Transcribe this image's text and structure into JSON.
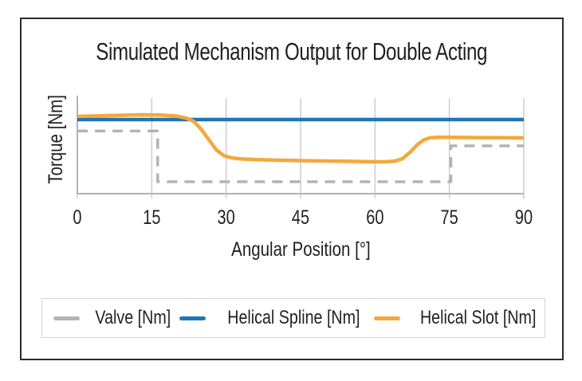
{
  "title": "Simulated Mechanism Output for Double Acting",
  "chart_data": {
    "type": "line",
    "title": "Simulated Mechanism Output for Double Acting",
    "xlabel": "Angular Position [°]",
    "ylabel": "Torque [Nm]",
    "x_ticks": [
      0,
      15,
      30,
      45,
      60,
      75,
      90
    ],
    "xlim": [
      0,
      90
    ],
    "ylim": [
      0,
      1
    ],
    "y_tick_labels": [],
    "grid": "vertical-only",
    "legend_position": "bottom",
    "colors": {
      "grid": "#cdcdcd",
      "axis": "#b2b2b2",
      "text": "#231f20",
      "frame_border": "#2b2b2b",
      "legend_border": "#d4d4d4"
    },
    "series": [
      {
        "name": "Valve [Nm]",
        "color": "#b3b3b3",
        "style": "dashed",
        "width": 3.5,
        "dash": "13 9",
        "points": [
          [
            0,
            0.655
          ],
          [
            16.2,
            0.655
          ],
          [
            16.2,
            0.125
          ],
          [
            75.3,
            0.125
          ],
          [
            75.3,
            0.5
          ],
          [
            90,
            0.5
          ]
        ]
      },
      {
        "name": "Helical Spline [Nm]",
        "color": "#1f76b4",
        "style": "solid",
        "width": 4.5,
        "dash": null,
        "points": [
          [
            0,
            0.775
          ],
          [
            90,
            0.775
          ]
        ]
      },
      {
        "name": "Helical Slot [Nm]",
        "color": "#f4a83c",
        "style": "solid",
        "width": 4.5,
        "dash": null,
        "points": [
          [
            0,
            0.808
          ],
          [
            8,
            0.818
          ],
          [
            13,
            0.825
          ],
          [
            17,
            0.822
          ],
          [
            20,
            0.812
          ],
          [
            22,
            0.79
          ],
          [
            23.5,
            0.755
          ],
          [
            25,
            0.672
          ],
          [
            26.5,
            0.565
          ],
          [
            28,
            0.46
          ],
          [
            29.5,
            0.398
          ],
          [
            31,
            0.375
          ],
          [
            33,
            0.363
          ],
          [
            36,
            0.356
          ],
          [
            40,
            0.351
          ],
          [
            45,
            0.346
          ],
          [
            50,
            0.342
          ],
          [
            55,
            0.338
          ],
          [
            59,
            0.334
          ],
          [
            62,
            0.333
          ],
          [
            64,
            0.34
          ],
          [
            65.5,
            0.365
          ],
          [
            67,
            0.43
          ],
          [
            68.5,
            0.51
          ],
          [
            69.8,
            0.562
          ],
          [
            71,
            0.583
          ],
          [
            72.5,
            0.59
          ],
          [
            75,
            0.59
          ],
          [
            80,
            0.587
          ],
          [
            85,
            0.585
          ],
          [
            90,
            0.583
          ]
        ]
      }
    ]
  },
  "legend": {
    "items": [
      {
        "label": "Valve [Nm]",
        "color": "#b3b3b3"
      },
      {
        "label": "Helical Spline [Nm]",
        "color": "#1f76b4"
      },
      {
        "label": "Helical Slot [Nm]",
        "color": "#f4a83c"
      }
    ]
  }
}
